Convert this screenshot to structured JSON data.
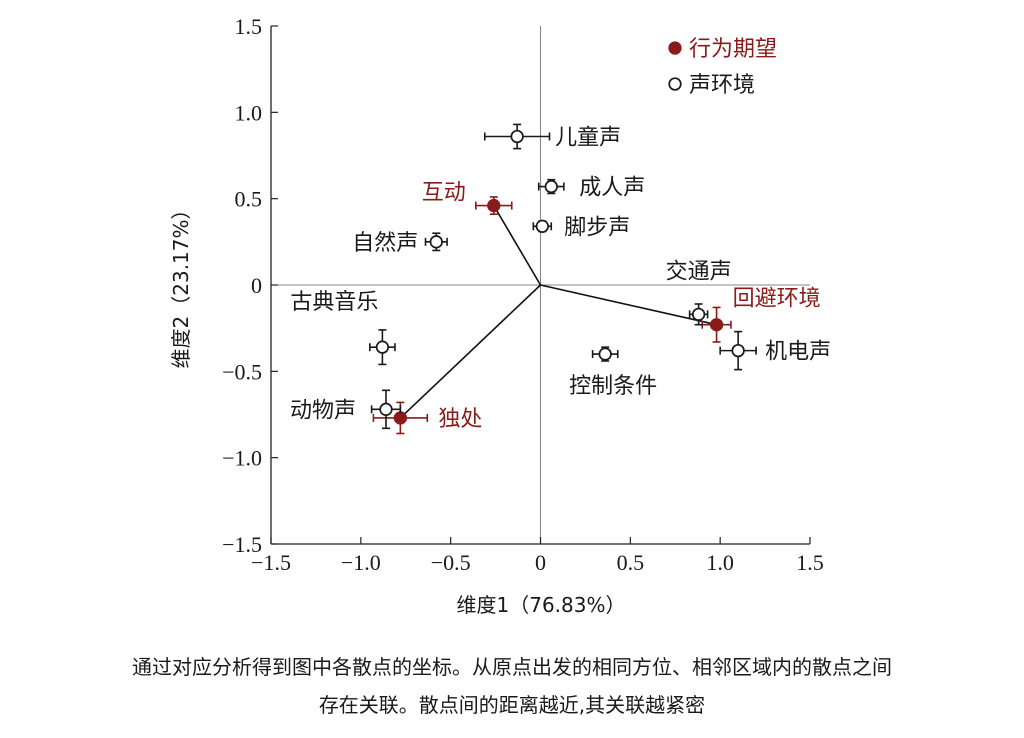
{
  "chart_data": {
    "type": "scatter",
    "xlabel": "维度1（76.83%）",
    "ylabel": "维度2（23.17%）",
    "xlim": [
      -1.5,
      1.5
    ],
    "ylim": [
      -1.5,
      1.5
    ],
    "xticks": [
      -1.5,
      -1.0,
      -0.5,
      0,
      0.5,
      1.0,
      1.5
    ],
    "yticks": [
      -1.5,
      -1.0,
      -0.5,
      0,
      0.5,
      1.0,
      1.5
    ],
    "xtick_labels": [
      "−1.5",
      "−1.0",
      "−0.5",
      "0",
      "0.5",
      "1.0",
      "1.5"
    ],
    "ytick_labels": [
      "−1.5",
      "−1.0",
      "−0.5",
      "0",
      "0.5",
      "1.0",
      "1.5"
    ],
    "grid": false,
    "legend_position": "top-right",
    "colors": {
      "behavior": "#8b1a1a",
      "sound": "#1a1a1a"
    },
    "series": [
      {
        "name": "行为期望",
        "marker": "filled-circle",
        "points": [
          {
            "label": "互动",
            "x": -0.26,
            "y": 0.46,
            "xerr": 0.1,
            "yerr": 0.05
          },
          {
            "label": "回避环境",
            "x": 0.98,
            "y": -0.23,
            "xerr": 0.08,
            "yerr": 0.1
          },
          {
            "label": "独处",
            "x": -0.78,
            "y": -0.77,
            "xerr": 0.15,
            "yerr": 0.09
          }
        ]
      },
      {
        "name": "声环境",
        "marker": "open-circle",
        "points": [
          {
            "label": "儿童声",
            "x": -0.13,
            "y": 0.86,
            "xerr": 0.18,
            "yerr": 0.07
          },
          {
            "label": "成人声",
            "x": 0.06,
            "y": 0.57,
            "xerr": 0.07,
            "yerr": 0.04
          },
          {
            "label": "脚步声",
            "x": 0.01,
            "y": 0.34,
            "xerr": 0.05,
            "yerr": 0.03
          },
          {
            "label": "自然声",
            "x": -0.58,
            "y": 0.25,
            "xerr": 0.06,
            "yerr": 0.05
          },
          {
            "label": "古典音乐",
            "x": -0.88,
            "y": -0.36,
            "xerr": 0.07,
            "yerr": 0.1
          },
          {
            "label": "动物声",
            "x": -0.86,
            "y": -0.72,
            "xerr": 0.08,
            "yerr": 0.11
          },
          {
            "label": "控制条件",
            "x": 0.36,
            "y": -0.4,
            "xerr": 0.07,
            "yerr": 0.04
          },
          {
            "label": "交通声",
            "x": 0.88,
            "y": -0.17,
            "xerr": 0.05,
            "yerr": 0.06
          },
          {
            "label": "机电声",
            "x": 1.1,
            "y": -0.38,
            "xerr": 0.1,
            "yerr": 0.11
          }
        ]
      }
    ],
    "vectors_from_origin": [
      "互动",
      "回避环境",
      "独处"
    ]
  },
  "caption": {
    "line1": "通过对应分析得到图中各散点的坐标。从原点出发的相同方位、相邻区域内的散点之间",
    "line2": "存在关联。散点间的距离越近,其关联越紧密"
  }
}
